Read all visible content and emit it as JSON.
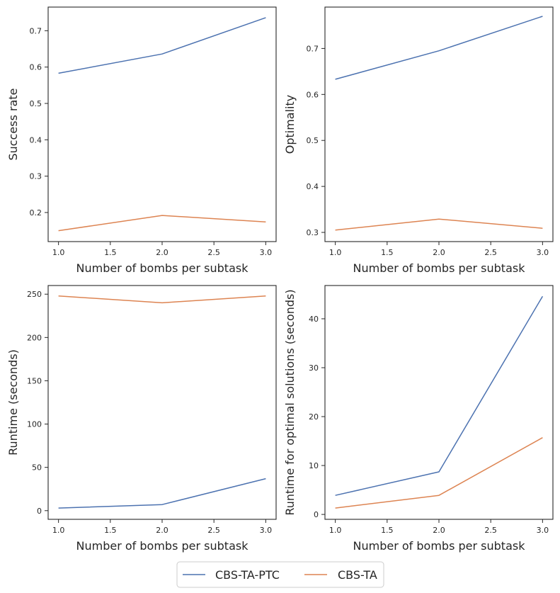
{
  "legend": {
    "entries": [
      {
        "name": "CBS-TA-PTC",
        "color": "#4c72b0"
      },
      {
        "name": "CBS-TA",
        "color": "#dd8452"
      }
    ]
  },
  "chart_data": [
    {
      "type": "line",
      "title": "",
      "xlabel": "Number of bombs per subtask",
      "ylabel": "Success rate",
      "xlim": [
        0.9,
        3.1
      ],
      "ylim": [
        0.12,
        0.765
      ],
      "xticks": [
        1.0,
        1.5,
        2.0,
        2.5,
        3.0
      ],
      "xtick_labels": [
        "1.0",
        "1.5",
        "2.0",
        "2.5",
        "3.0"
      ],
      "yticks": [
        0.2,
        0.3,
        0.4,
        0.5,
        0.6,
        0.7
      ],
      "ytick_labels": [
        "0.2",
        "0.3",
        "0.4",
        "0.5",
        "0.6",
        "0.7"
      ],
      "x": [
        1.0,
        2.0,
        3.0
      ],
      "series": [
        {
          "name": "CBS-TA-PTC",
          "color": "#4c72b0",
          "values": [
            0.583,
            0.636,
            0.736
          ]
        },
        {
          "name": "CBS-TA",
          "color": "#dd8452",
          "values": [
            0.15,
            0.192,
            0.174
          ]
        }
      ]
    },
    {
      "type": "line",
      "title": "",
      "xlabel": "Number of bombs per subtask",
      "ylabel": "Optimality",
      "xlim": [
        0.9,
        3.1
      ],
      "ylim": [
        0.28,
        0.79
      ],
      "xticks": [
        1.0,
        1.5,
        2.0,
        2.5,
        3.0
      ],
      "xtick_labels": [
        "1.0",
        "1.5",
        "2.0",
        "2.5",
        "3.0"
      ],
      "yticks": [
        0.3,
        0.4,
        0.5,
        0.6,
        0.7
      ],
      "ytick_labels": [
        "0.3",
        "0.4",
        "0.5",
        "0.6",
        "0.7"
      ],
      "x": [
        1.0,
        2.0,
        3.0
      ],
      "series": [
        {
          "name": "CBS-TA-PTC",
          "color": "#4c72b0",
          "values": [
            0.633,
            0.695,
            0.77
          ]
        },
        {
          "name": "CBS-TA",
          "color": "#dd8452",
          "values": [
            0.305,
            0.329,
            0.309
          ]
        }
      ]
    },
    {
      "type": "line",
      "title": "",
      "xlabel": "Number of bombs per subtask",
      "ylabel": "Runtime (seconds)",
      "xlim": [
        0.9,
        3.1
      ],
      "ylim": [
        -10,
        260
      ],
      "xticks": [
        1.0,
        1.5,
        2.0,
        2.5,
        3.0
      ],
      "xtick_labels": [
        "1.0",
        "1.5",
        "2.0",
        "2.5",
        "3.0"
      ],
      "yticks": [
        0,
        50,
        100,
        150,
        200,
        250
      ],
      "ytick_labels": [
        "0",
        "50",
        "100",
        "150",
        "200",
        "250"
      ],
      "x": [
        1.0,
        2.0,
        3.0
      ],
      "series": [
        {
          "name": "CBS-TA-PTC",
          "color": "#4c72b0",
          "values": [
            3,
            7,
            37
          ]
        },
        {
          "name": "CBS-TA",
          "color": "#dd8452",
          "values": [
            248,
            240,
            248
          ]
        }
      ]
    },
    {
      "type": "line",
      "title": "",
      "xlabel": "Number of bombs per subtask",
      "ylabel": "Runtime for optimal solutions (seconds)",
      "xlim": [
        0.9,
        3.1
      ],
      "ylim": [
        -1.0,
        46.8
      ],
      "xticks": [
        1.0,
        1.5,
        2.0,
        2.5,
        3.0
      ],
      "xtick_labels": [
        "1.0",
        "1.5",
        "2.0",
        "2.5",
        "3.0"
      ],
      "yticks": [
        0,
        10,
        20,
        30,
        40
      ],
      "ytick_labels": [
        "0",
        "10",
        "20",
        "30",
        "40"
      ],
      "x": [
        1.0,
        2.0,
        3.0
      ],
      "series": [
        {
          "name": "CBS-TA-PTC",
          "color": "#4c72b0",
          "values": [
            3.9,
            8.7,
            44.6
          ]
        },
        {
          "name": "CBS-TA",
          "color": "#dd8452",
          "values": [
            1.3,
            3.9,
            15.7
          ]
        }
      ]
    }
  ]
}
